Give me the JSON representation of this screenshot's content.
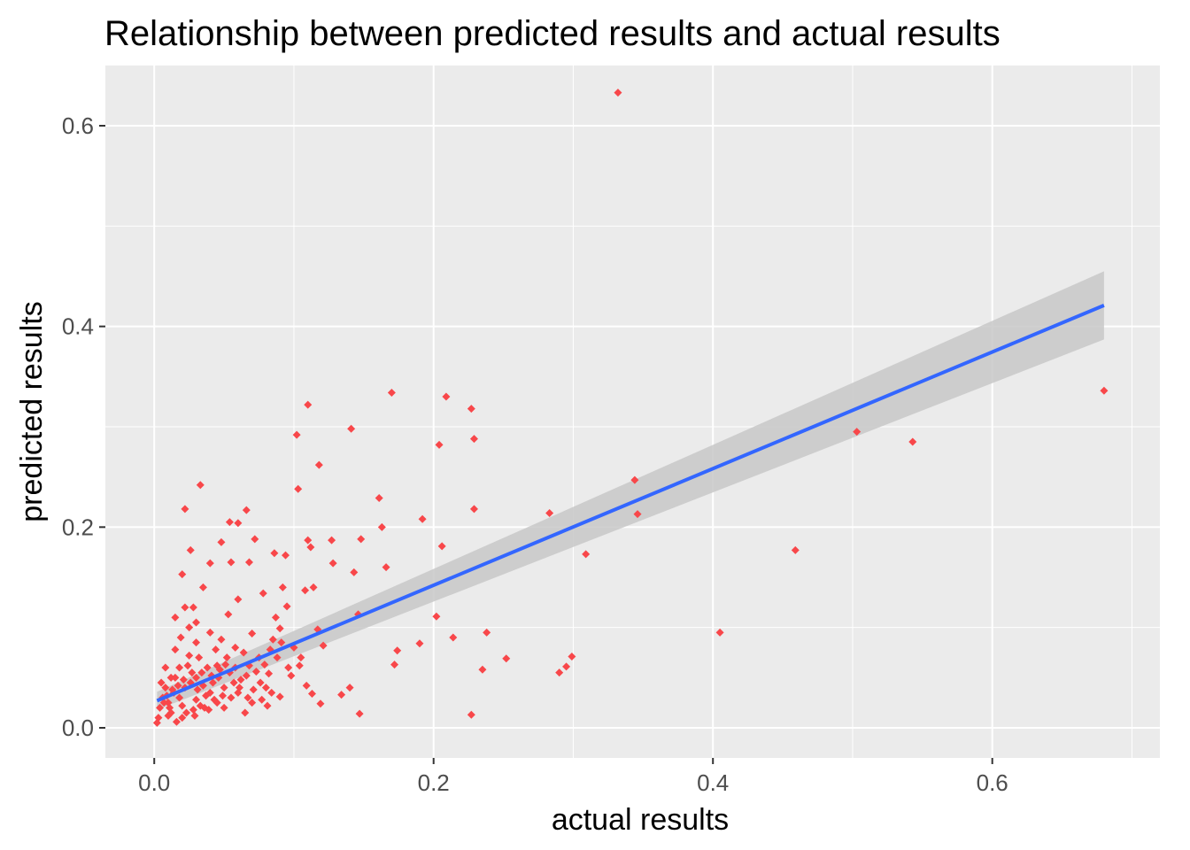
{
  "chart_data": {
    "type": "scatter",
    "title": "Relationship between predicted results and actual results",
    "xlabel": "actual results",
    "ylabel": "predicted results",
    "xlim": [
      -0.035,
      0.72
    ],
    "ylim": [
      -0.03,
      0.66
    ],
    "x_ticks": [
      0.0,
      0.2,
      0.4,
      0.6
    ],
    "x_tick_labels": [
      "0.0",
      "0.2",
      "0.4",
      "0.6"
    ],
    "y_ticks": [
      0.0,
      0.2,
      0.4,
      0.6
    ],
    "y_tick_labels": [
      "0.0",
      "0.2",
      "0.4",
      "0.6"
    ],
    "grid": true,
    "legend": "none",
    "colors": {
      "points": "#f8474a",
      "fit_line": "#3366ff",
      "confidence_band": "#c8c8c8",
      "panel": "#ebebeb",
      "grid": "#ffffff"
    },
    "series": [
      {
        "type": "scatter",
        "points": [
          [
            0.332,
            0.633
          ],
          [
            0.68,
            0.336
          ],
          [
            0.543,
            0.285
          ],
          [
            0.503,
            0.295
          ],
          [
            0.459,
            0.177
          ],
          [
            0.405,
            0.095
          ],
          [
            0.344,
            0.247
          ],
          [
            0.346,
            0.213
          ],
          [
            0.283,
            0.214
          ],
          [
            0.309,
            0.173
          ],
          [
            0.299,
            0.071
          ],
          [
            0.295,
            0.061
          ],
          [
            0.29,
            0.055
          ],
          [
            0.252,
            0.069
          ],
          [
            0.238,
            0.095
          ],
          [
            0.235,
            0.058
          ],
          [
            0.227,
            0.013
          ],
          [
            0.229,
            0.288
          ],
          [
            0.227,
            0.318
          ],
          [
            0.229,
            0.218
          ],
          [
            0.209,
            0.33
          ],
          [
            0.204,
            0.282
          ],
          [
            0.206,
            0.181
          ],
          [
            0.214,
            0.09
          ],
          [
            0.202,
            0.111
          ],
          [
            0.192,
            0.208
          ],
          [
            0.19,
            0.084
          ],
          [
            0.17,
            0.334
          ],
          [
            0.161,
            0.229
          ],
          [
            0.163,
            0.2
          ],
          [
            0.166,
            0.16
          ],
          [
            0.172,
            0.063
          ],
          [
            0.174,
            0.077
          ],
          [
            0.148,
            0.188
          ],
          [
            0.143,
            0.155
          ],
          [
            0.141,
            0.298
          ],
          [
            0.146,
            0.113
          ],
          [
            0.147,
            0.014
          ],
          [
            0.14,
            0.04
          ],
          [
            0.134,
            0.033
          ],
          [
            0.127,
            0.187
          ],
          [
            0.128,
            0.164
          ],
          [
            0.11,
            0.322
          ],
          [
            0.118,
            0.262
          ],
          [
            0.102,
            0.292
          ],
          [
            0.103,
            0.238
          ],
          [
            0.11,
            0.187
          ],
          [
            0.112,
            0.18
          ],
          [
            0.108,
            0.137
          ],
          [
            0.114,
            0.14
          ],
          [
            0.117,
            0.098
          ],
          [
            0.121,
            0.082
          ],
          [
            0.105,
            0.07
          ],
          [
            0.109,
            0.042
          ],
          [
            0.113,
            0.034
          ],
          [
            0.119,
            0.024
          ],
          [
            0.094,
            0.172
          ],
          [
            0.086,
            0.174
          ],
          [
            0.092,
            0.14
          ],
          [
            0.095,
            0.121
          ],
          [
            0.09,
            0.099
          ],
          [
            0.085,
            0.088
          ],
          [
            0.096,
            0.06
          ],
          [
            0.082,
            0.054
          ],
          [
            0.09,
            0.031
          ],
          [
            0.072,
            0.188
          ],
          [
            0.066,
            0.217
          ],
          [
            0.06,
            0.204
          ],
          [
            0.068,
            0.165
          ],
          [
            0.078,
            0.134
          ],
          [
            0.054,
            0.205
          ],
          [
            0.048,
            0.185
          ],
          [
            0.055,
            0.165
          ],
          [
            0.06,
            0.128
          ],
          [
            0.053,
            0.113
          ],
          [
            0.033,
            0.242
          ],
          [
            0.022,
            0.218
          ],
          [
            0.026,
            0.177
          ],
          [
            0.02,
            0.153
          ],
          [
            0.028,
            0.12
          ],
          [
            0.022,
            0.12
          ],
          [
            0.015,
            0.11
          ],
          [
            0.04,
            0.164
          ],
          [
            0.035,
            0.14
          ],
          [
            0.07,
            0.094
          ],
          [
            0.075,
            0.07
          ],
          [
            0.07,
            0.025
          ],
          [
            0.065,
            0.015
          ],
          [
            0.04,
            0.095
          ],
          [
            0.03,
            0.085
          ],
          [
            0.025,
            0.072
          ],
          [
            0.018,
            0.06
          ],
          [
            0.012,
            0.05
          ],
          [
            0.008,
            0.04
          ],
          [
            0.006,
            0.03
          ],
          [
            0.004,
            0.02
          ],
          [
            0.003,
            0.01
          ],
          [
            0.002,
            0.005
          ],
          [
            0.01,
            0.025
          ],
          [
            0.014,
            0.035
          ],
          [
            0.018,
            0.03
          ],
          [
            0.022,
            0.04
          ],
          [
            0.026,
            0.045
          ],
          [
            0.03,
            0.05
          ],
          [
            0.034,
            0.055
          ],
          [
            0.038,
            0.06
          ],
          [
            0.042,
            0.045
          ],
          [
            0.046,
            0.05
          ],
          [
            0.05,
            0.04
          ],
          [
            0.054,
            0.055
          ],
          [
            0.058,
            0.06
          ],
          [
            0.062,
            0.048
          ],
          [
            0.066,
            0.052
          ],
          [
            0.076,
            0.045
          ],
          [
            0.08,
            0.04
          ],
          [
            0.084,
            0.035
          ],
          [
            0.088,
            0.07
          ],
          [
            0.045,
            0.025
          ],
          [
            0.05,
            0.02
          ],
          [
            0.055,
            0.03
          ],
          [
            0.06,
            0.035
          ],
          [
            0.036,
            0.02
          ],
          [
            0.028,
            0.018
          ],
          [
            0.02,
            0.01
          ],
          [
            0.016,
            0.006
          ],
          [
            0.012,
            0.015
          ],
          [
            0.024,
            0.062
          ],
          [
            0.032,
            0.07
          ],
          [
            0.044,
            0.078
          ],
          [
            0.048,
            0.088
          ],
          [
            0.058,
            0.08
          ],
          [
            0.064,
            0.075
          ],
          [
            0.1,
            0.08
          ],
          [
            0.098,
            0.052
          ],
          [
            0.104,
            0.062
          ],
          [
            0.015,
            0.078
          ],
          [
            0.019,
            0.09
          ],
          [
            0.025,
            0.1
          ],
          [
            0.03,
            0.105
          ],
          [
            0.008,
            0.06
          ],
          [
            0.005,
            0.045
          ],
          [
            0.01,
            0.012
          ],
          [
            0.02,
            0.022
          ],
          [
            0.03,
            0.028
          ],
          [
            0.04,
            0.035
          ],
          [
            0.035,
            0.042
          ],
          [
            0.015,
            0.05
          ],
          [
            0.027,
            0.055
          ],
          [
            0.045,
            0.062
          ],
          [
            0.052,
            0.07
          ],
          [
            0.068,
            0.062
          ],
          [
            0.073,
            0.056
          ],
          [
            0.079,
            0.063
          ],
          [
            0.083,
            0.078
          ],
          [
            0.087,
            0.11
          ],
          [
            0.091,
            0.085
          ],
          [
            0.031,
            0.038
          ],
          [
            0.037,
            0.032
          ],
          [
            0.043,
            0.028
          ],
          [
            0.049,
            0.032
          ],
          [
            0.021,
            0.048
          ],
          [
            0.017,
            0.042
          ],
          [
            0.013,
            0.038
          ],
          [
            0.009,
            0.032
          ],
          [
            0.007,
            0.025
          ],
          [
            0.011,
            0.02
          ],
          [
            0.023,
            0.015
          ],
          [
            0.029,
            0.012
          ],
          [
            0.033,
            0.022
          ],
          [
            0.039,
            0.018
          ],
          [
            0.041,
            0.052
          ],
          [
            0.047,
            0.058
          ],
          [
            0.051,
            0.063
          ],
          [
            0.057,
            0.045
          ],
          [
            0.061,
            0.04
          ],
          [
            0.067,
            0.03
          ],
          [
            0.071,
            0.038
          ],
          [
            0.077,
            0.028
          ],
          [
            0.081,
            0.022
          ]
        ]
      },
      {
        "type": "line",
        "method": "linear fit",
        "points": [
          [
            0.002,
            0.027
          ],
          [
            0.68,
            0.421
          ]
        ]
      },
      {
        "type": "area",
        "role": "confidence band",
        "x": [
          0.002,
          0.68
        ],
        "lower": [
          0.018,
          0.387
        ],
        "upper": [
          0.036,
          0.455
        ]
      }
    ]
  }
}
